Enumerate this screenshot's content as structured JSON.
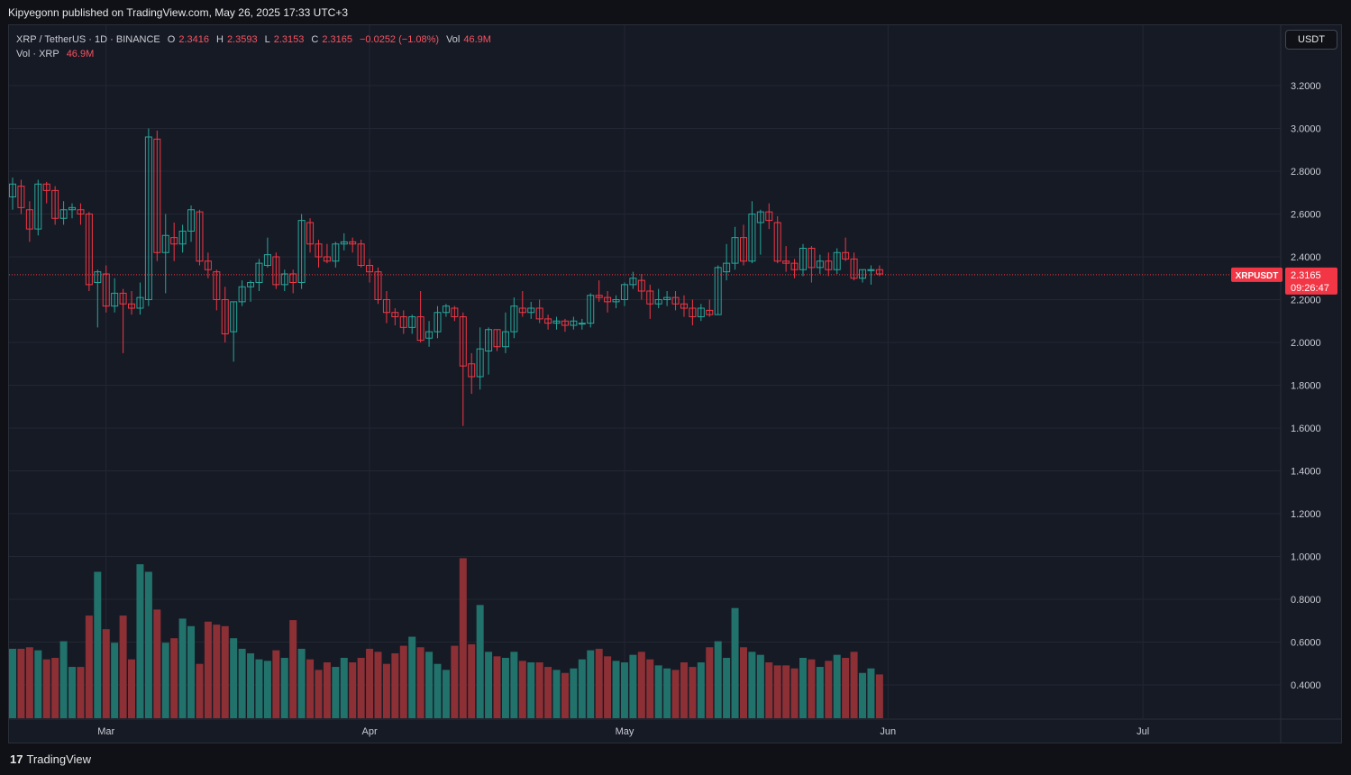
{
  "header": {
    "publisher_text": "Kipyegonn published on TradingView.com, May 26, 2025 17:33 UTC+3"
  },
  "legend": {
    "symbol": "XRP / TetherUS · 1D · BINANCE",
    "open_label": "O",
    "open_value": "2.3416",
    "high_label": "H",
    "high_value": "2.3593",
    "low_label": "L",
    "low_value": "2.3153",
    "close_label": "C",
    "close_value": "2.3165",
    "change_value": "−0.0252 (−1.08%)",
    "vol_label": "Vol",
    "vol_value": "46.9M",
    "vol_row_label": "Vol · XRP",
    "vol_row_value": "46.9M"
  },
  "currency_button": "USDT",
  "price_tag": {
    "symbol": "XRPUSDT",
    "price": "2.3165",
    "countdown": "09:26:47"
  },
  "footer": {
    "brand_mark": "17",
    "brand_name": "TradingView"
  },
  "colors": {
    "up": "#26a69a",
    "down": "#f23645",
    "up_volume": "#22726c",
    "down_volume": "#8c3036",
    "background": "#161a25",
    "grid": "#232733",
    "price_line": "#f23645"
  },
  "chart_data": {
    "type": "candlestick",
    "timeframe": "1D",
    "y_axis_ticks": [
      "3.2000",
      "3.0000",
      "2.8000",
      "2.6000",
      "2.4000",
      "2.2000",
      "2.0000",
      "1.8000",
      "1.6000",
      "1.4000",
      "1.2000",
      "1.0000",
      "0.8000",
      "0.6000",
      "0.4000"
    ],
    "ylim": [
      0.25,
      3.35
    ],
    "x_axis_labels": [
      "Mar",
      "Apr",
      "May",
      "Jun",
      "Jul"
    ],
    "x_axis_label_dates": [
      "2025-03-01",
      "2025-04-01",
      "2025-05-01",
      "2025-06-01",
      "2025-07-01"
    ],
    "first_date": "2025-02-18",
    "last_price": 2.3165,
    "candles": [
      [
        2.68,
        2.77,
        2.62,
        2.74
      ],
      [
        2.73,
        2.76,
        2.6,
        2.63
      ],
      [
        2.62,
        2.66,
        2.47,
        2.53
      ],
      [
        2.53,
        2.76,
        2.5,
        2.74
      ],
      [
        2.74,
        2.75,
        2.65,
        2.71
      ],
      [
        2.71,
        2.73,
        2.55,
        2.58
      ],
      [
        2.58,
        2.66,
        2.55,
        2.62
      ],
      [
        2.62,
        2.65,
        2.58,
        2.63
      ],
      [
        2.62,
        2.65,
        2.55,
        2.6
      ],
      [
        2.6,
        2.61,
        2.24,
        2.27
      ],
      [
        2.28,
        2.34,
        2.07,
        2.33
      ],
      [
        2.32,
        2.36,
        2.14,
        2.17
      ],
      [
        2.17,
        2.3,
        2.14,
        2.23
      ],
      [
        2.23,
        2.25,
        1.95,
        2.18
      ],
      [
        2.18,
        2.24,
        2.13,
        2.16
      ],
      [
        2.16,
        2.28,
        2.13,
        2.21
      ],
      [
        2.2,
        3.0,
        2.17,
        2.96
      ],
      [
        2.95,
        2.99,
        2.38,
        2.42
      ],
      [
        2.42,
        2.6,
        2.23,
        2.5
      ],
      [
        2.49,
        2.56,
        2.38,
        2.46
      ],
      [
        2.46,
        2.55,
        2.42,
        2.52
      ],
      [
        2.52,
        2.64,
        2.47,
        2.62
      ],
      [
        2.61,
        2.62,
        2.36,
        2.38
      ],
      [
        2.38,
        2.42,
        2.3,
        2.34
      ],
      [
        2.33,
        2.34,
        2.15,
        2.2
      ],
      [
        2.2,
        2.26,
        2.0,
        2.04
      ],
      [
        2.05,
        2.19,
        1.91,
        2.19
      ],
      [
        2.19,
        2.29,
        2.17,
        2.26
      ],
      [
        2.26,
        2.29,
        2.19,
        2.28
      ],
      [
        2.28,
        2.39,
        2.24,
        2.37
      ],
      [
        2.36,
        2.49,
        2.35,
        2.41
      ],
      [
        2.4,
        2.42,
        2.25,
        2.27
      ],
      [
        2.27,
        2.34,
        2.24,
        2.32
      ],
      [
        2.32,
        2.34,
        2.23,
        2.28
      ],
      [
        2.28,
        2.6,
        2.25,
        2.57
      ],
      [
        2.56,
        2.58,
        2.42,
        2.46
      ],
      [
        2.46,
        2.48,
        2.35,
        2.4
      ],
      [
        2.4,
        2.46,
        2.37,
        2.38
      ],
      [
        2.38,
        2.47,
        2.35,
        2.46
      ],
      [
        2.46,
        2.51,
        2.43,
        2.47
      ],
      [
        2.47,
        2.49,
        2.42,
        2.46
      ],
      [
        2.46,
        2.48,
        2.35,
        2.36
      ],
      [
        2.36,
        2.39,
        2.28,
        2.33
      ],
      [
        2.33,
        2.35,
        2.18,
        2.2
      ],
      [
        2.2,
        2.24,
        2.09,
        2.14
      ],
      [
        2.14,
        2.16,
        2.08,
        2.12
      ],
      [
        2.12,
        2.15,
        2.04,
        2.07
      ],
      [
        2.07,
        2.13,
        2.04,
        2.12
      ],
      [
        2.12,
        2.24,
        2.0,
        2.01
      ],
      [
        2.02,
        2.1,
        1.98,
        2.05
      ],
      [
        2.05,
        2.17,
        2.02,
        2.14
      ],
      [
        2.14,
        2.18,
        2.12,
        2.17
      ],
      [
        2.16,
        2.17,
        2.1,
        2.12
      ],
      [
        2.12,
        2.14,
        1.61,
        1.89
      ],
      [
        1.9,
        1.95,
        1.76,
        1.84
      ],
      [
        1.84,
        2.07,
        1.78,
        1.97
      ],
      [
        1.96,
        2.07,
        1.85,
        2.06
      ],
      [
        2.06,
        2.06,
        1.96,
        1.98
      ],
      [
        1.98,
        2.14,
        1.95,
        2.05
      ],
      [
        2.05,
        2.21,
        2.02,
        2.17
      ],
      [
        2.16,
        2.24,
        2.12,
        2.14
      ],
      [
        2.14,
        2.19,
        2.11,
        2.16
      ],
      [
        2.16,
        2.2,
        2.09,
        2.11
      ],
      [
        2.11,
        2.13,
        2.06,
        2.09
      ],
      [
        2.09,
        2.12,
        2.06,
        2.1
      ],
      [
        2.1,
        2.11,
        2.05,
        2.08
      ],
      [
        2.08,
        2.12,
        2.06,
        2.1
      ],
      [
        2.09,
        2.11,
        2.06,
        2.09
      ],
      [
        2.09,
        2.23,
        2.07,
        2.22
      ],
      [
        2.22,
        2.29,
        2.19,
        2.21
      ],
      [
        2.21,
        2.24,
        2.14,
        2.19
      ],
      [
        2.19,
        2.22,
        2.16,
        2.2
      ],
      [
        2.2,
        2.28,
        2.17,
        2.27
      ],
      [
        2.27,
        2.33,
        2.25,
        2.3
      ],
      [
        2.29,
        2.32,
        2.2,
        2.24
      ],
      [
        2.24,
        2.27,
        2.11,
        2.18
      ],
      [
        2.18,
        2.25,
        2.16,
        2.2
      ],
      [
        2.2,
        2.24,
        2.17,
        2.21
      ],
      [
        2.21,
        2.24,
        2.15,
        2.18
      ],
      [
        2.18,
        2.22,
        2.12,
        2.16
      ],
      [
        2.16,
        2.2,
        2.08,
        2.12
      ],
      [
        2.12,
        2.18,
        2.1,
        2.16
      ],
      [
        2.15,
        2.2,
        2.12,
        2.13
      ],
      [
        2.13,
        2.36,
        2.13,
        2.35
      ],
      [
        2.33,
        2.46,
        2.29,
        2.37
      ],
      [
        2.37,
        2.54,
        2.34,
        2.49
      ],
      [
        2.49,
        2.55,
        2.36,
        2.38
      ],
      [
        2.38,
        2.66,
        2.37,
        2.6
      ],
      [
        2.56,
        2.62,
        2.41,
        2.61
      ],
      [
        2.61,
        2.65,
        2.53,
        2.57
      ],
      [
        2.56,
        2.59,
        2.37,
        2.38
      ],
      [
        2.38,
        2.45,
        2.33,
        2.37
      ],
      [
        2.37,
        2.39,
        2.3,
        2.34
      ],
      [
        2.34,
        2.46,
        2.31,
        2.44
      ],
      [
        2.44,
        2.45,
        2.28,
        2.35
      ],
      [
        2.35,
        2.41,
        2.32,
        2.38
      ],
      [
        2.38,
        2.42,
        2.31,
        2.34
      ],
      [
        2.34,
        2.44,
        2.32,
        2.42
      ],
      [
        2.42,
        2.49,
        2.38,
        2.39
      ],
      [
        2.39,
        2.42,
        2.29,
        2.3
      ],
      [
        2.3,
        2.34,
        2.28,
        2.34
      ],
      [
        2.34,
        2.36,
        2.27,
        2.34
      ],
      [
        2.34,
        2.36,
        2.31,
        2.32
      ]
    ],
    "volume": [
      0.46,
      0.46,
      0.47,
      0.45,
      0.39,
      0.4,
      0.51,
      0.34,
      0.34,
      0.68,
      0.97,
      0.59,
      0.5,
      0.68,
      0.39,
      1.02,
      0.97,
      0.72,
      0.5,
      0.53,
      0.66,
      0.61,
      0.36,
      0.64,
      0.62,
      0.61,
      0.53,
      0.46,
      0.43,
      0.39,
      0.38,
      0.45,
      0.4,
      0.65,
      0.46,
      0.39,
      0.32,
      0.37,
      0.34,
      0.4,
      0.37,
      0.4,
      0.46,
      0.44,
      0.36,
      0.43,
      0.48,
      0.54,
      0.47,
      0.44,
      0.36,
      0.32,
      0.48,
      1.06,
      0.49,
      0.75,
      0.44,
      0.41,
      0.4,
      0.44,
      0.38,
      0.37,
      0.37,
      0.34,
      0.32,
      0.3,
      0.33,
      0.39,
      0.45,
      0.46,
      0.41,
      0.38,
      0.37,
      0.42,
      0.44,
      0.39,
      0.35,
      0.33,
      0.32,
      0.37,
      0.34,
      0.37,
      0.47,
      0.51,
      0.4,
      0.73,
      0.47,
      0.44,
      0.42,
      0.37,
      0.35,
      0.35,
      0.33,
      0.4,
      0.39,
      0.34,
      0.38,
      0.42,
      0.4,
      0.44,
      0.3,
      0.33,
      0.29
    ],
    "volume_axis_note": "volume bars drawn scaled into lower pane"
  }
}
